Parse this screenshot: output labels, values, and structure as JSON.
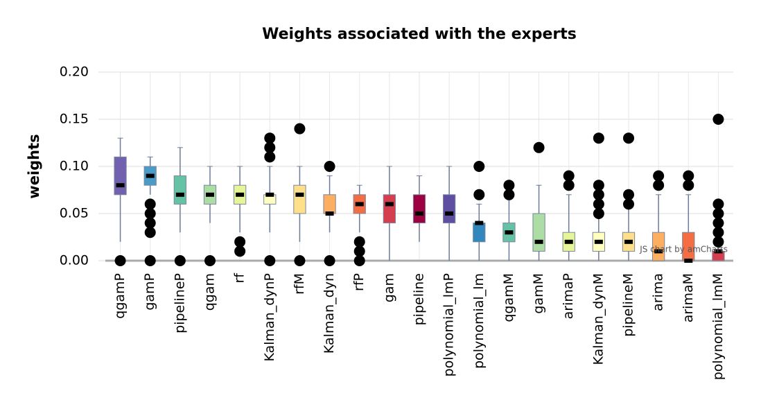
{
  "chart_data": {
    "type": "box",
    "title": "Weights associated with the experts",
    "ylabel": "weights",
    "credit": "JS chart by amCharts",
    "categories": [
      "qgamP",
      "gamP",
      "pipelineP",
      "qgam",
      "rf",
      "Kalman_dynP",
      "rfM",
      "Kalman_dyn",
      "rfP",
      "gam",
      "pipeline",
      "polynomial_lmP",
      "polynomial_lm",
      "qgamM",
      "gamM",
      "arimaP",
      "Kalman_dynM",
      "pipelineM",
      "arima",
      "arimaM",
      "polynomial_lmM"
    ],
    "boxes": [
      {
        "low": 0.02,
        "q1": 0.07,
        "median": 0.08,
        "q3": 0.11,
        "high": 0.13,
        "outliers": [
          0
        ],
        "color": "#7261ae"
      },
      {
        "low": 0.07,
        "q1": 0.08,
        "median": 0.09,
        "q3": 0.1,
        "high": 0.11,
        "outliers": [
          0.06,
          0.05,
          0.04,
          0.03,
          0
        ],
        "color": "#4b9bc8"
      },
      {
        "low": 0.03,
        "q1": 0.06,
        "median": 0.07,
        "q3": 0.09,
        "high": 0.12,
        "outliers": [
          0
        ],
        "color": "#66c2a5"
      },
      {
        "low": 0.04,
        "q1": 0.06,
        "median": 0.07,
        "q3": 0.08,
        "high": 0.1,
        "outliers": [
          0
        ],
        "color": "#abdda4"
      },
      {
        "low": 0.03,
        "q1": 0.06,
        "median": 0.07,
        "q3": 0.08,
        "high": 0.1,
        "outliers": [
          0.02,
          0.01
        ],
        "color": "#e6f598"
      },
      {
        "low": 0.03,
        "q1": 0.06,
        "median": 0.07,
        "q3": 0.07,
        "high": 0.1,
        "outliers": [
          0.13,
          0.12,
          0.11,
          0
        ],
        "color": "#ffffbf"
      },
      {
        "low": 0.02,
        "q1": 0.05,
        "median": 0.07,
        "q3": 0.08,
        "high": 0.1,
        "outliers": [
          0.14,
          0
        ],
        "color": "#fee08b"
      },
      {
        "low": 0.03,
        "q1": 0.05,
        "median": 0.05,
        "q3": 0.07,
        "high": 0.09,
        "outliers": [
          0.1,
          0
        ],
        "color": "#fdae61"
      },
      {
        "low": 0.03,
        "q1": 0.05,
        "median": 0.06,
        "q3": 0.07,
        "high": 0.08,
        "outliers": [
          0.02,
          0.01,
          0
        ],
        "color": "#f46d43"
      },
      {
        "low": 0,
        "q1": 0.04,
        "median": 0.06,
        "q3": 0.07,
        "high": 0.1,
        "outliers": [],
        "color": "#d53e4f"
      },
      {
        "low": 0.02,
        "q1": 0.04,
        "median": 0.05,
        "q3": 0.07,
        "high": 0.09,
        "outliers": [],
        "color": "#9e0142"
      },
      {
        "low": 0,
        "q1": 0.04,
        "median": 0.05,
        "q3": 0.07,
        "high": 0.1,
        "outliers": [],
        "color": "#5e4fa2"
      },
      {
        "low": 0,
        "q1": 0.02,
        "median": 0.04,
        "q3": 0.04,
        "high": 0.06,
        "outliers": [
          0.1,
          0.07
        ],
        "color": "#3288bd"
      },
      {
        "low": 0,
        "q1": 0.02,
        "median": 0.03,
        "q3": 0.04,
        "high": 0.07,
        "outliers": [
          0.08,
          0.07
        ],
        "color": "#66c2a5"
      },
      {
        "low": 0,
        "q1": 0.01,
        "median": 0.02,
        "q3": 0.05,
        "high": 0.08,
        "outliers": [
          0.12
        ],
        "color": "#abdda4"
      },
      {
        "low": 0,
        "q1": 0.01,
        "median": 0.02,
        "q3": 0.03,
        "high": 0.07,
        "outliers": [
          0.09,
          0.08
        ],
        "color": "#e6f598"
      },
      {
        "low": 0,
        "q1": 0.01,
        "median": 0.02,
        "q3": 0.03,
        "high": 0.05,
        "outliers": [
          0.13,
          0.08,
          0.07,
          0.06,
          0.05
        ],
        "color": "#ffffbf"
      },
      {
        "low": 0,
        "q1": 0.01,
        "median": 0.02,
        "q3": 0.03,
        "high": 0.06,
        "outliers": [
          0.13,
          0.07,
          0.06
        ],
        "color": "#fee08b"
      },
      {
        "low": 0,
        "q1": 0,
        "median": 0.01,
        "q3": 0.03,
        "high": 0.07,
        "outliers": [
          0.09,
          0.08
        ],
        "color": "#fdae61"
      },
      {
        "low": 0,
        "q1": 0,
        "median": 0,
        "q3": 0.03,
        "high": 0.07,
        "outliers": [
          0.09,
          0.08
        ],
        "color": "#f46d43"
      },
      {
        "low": 0,
        "q1": 0,
        "median": 0.01,
        "q3": 0.01,
        "high": 0.02,
        "outliers": [
          0.15,
          0.06,
          0.05,
          0.04,
          0.03,
          0.02
        ],
        "color": "#d53e4f"
      }
    ],
    "ylim": [
      0,
      0.2
    ],
    "yticks": [
      {
        "value": 0,
        "label": "0.00"
      },
      {
        "value": 0.05,
        "label": "0.05"
      },
      {
        "value": 0.1,
        "label": "0.10"
      },
      {
        "value": 0.15,
        "label": "0.15"
      },
      {
        "value": 0.2,
        "label": "0.20"
      }
    ],
    "grid": true
  }
}
